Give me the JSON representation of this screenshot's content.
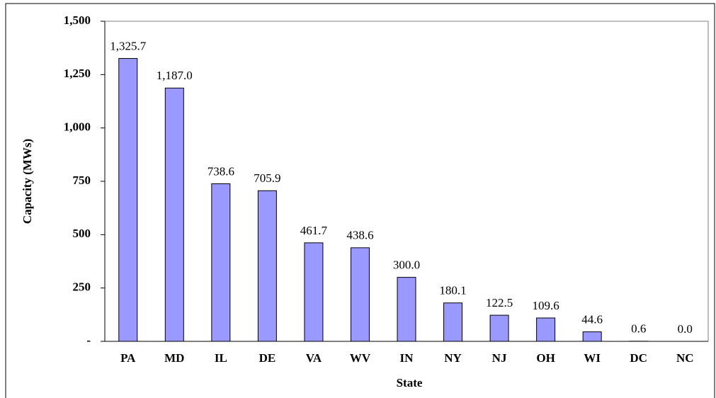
{
  "chart_data": {
    "type": "bar",
    "x_label": "State",
    "y_label": "Capacity (MWs)",
    "categories": [
      "PA",
      "MD",
      "IL",
      "DE",
      "VA",
      "WV",
      "IN",
      "NY",
      "NJ",
      "OH",
      "WI",
      "DC",
      "NC"
    ],
    "values": [
      1325.7,
      1187.0,
      738.6,
      705.9,
      461.7,
      438.6,
      300.0,
      180.1,
      122.5,
      109.6,
      44.6,
      0.6,
      0.0
    ],
    "value_labels": [
      "1,325.7",
      "1,187.0",
      "738.6",
      "705.9",
      "461.7",
      "438.6",
      "300.0",
      "180.1",
      "122.5",
      "109.6",
      "44.6",
      "0.6",
      "0.0"
    ],
    "color": "#9999ff",
    "ylim": [
      0,
      1500
    ],
    "yticks": [
      {
        "value": 0,
        "label": "-"
      },
      250,
      500,
      750,
      {
        "value": 1000,
        "label": "1,000"
      },
      {
        "value": 1250,
        "label": "1,250"
      },
      {
        "value": 1500,
        "label": "1,500"
      }
    ]
  }
}
